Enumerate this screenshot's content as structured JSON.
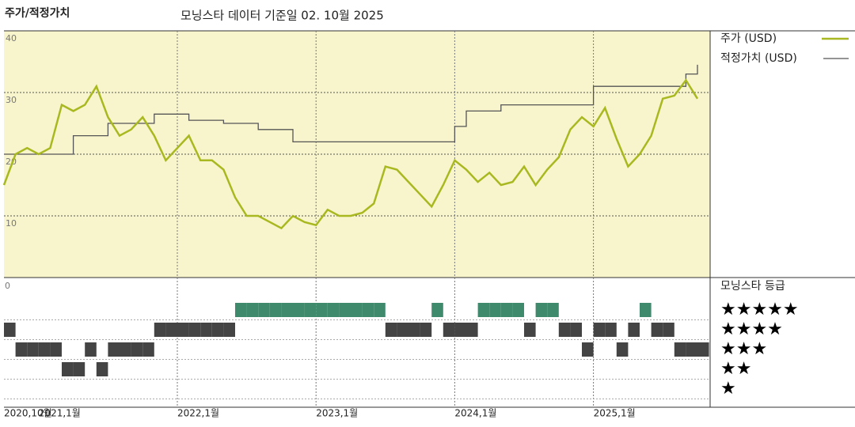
{
  "chart_data": {
    "type": "line",
    "title": "주가/적정가치",
    "subtitle": "모닝스타 데이터 기준일 02. 10월 2025",
    "x": [
      "2020-10",
      "2020-11",
      "2020-12",
      "2021-01",
      "2021-02",
      "2021-03",
      "2021-04",
      "2021-05",
      "2021-06",
      "2021-07",
      "2021-08",
      "2021-09",
      "2021-10",
      "2021-11",
      "2021-12",
      "2022-01",
      "2022-02",
      "2022-03",
      "2022-04",
      "2022-05",
      "2022-06",
      "2022-07",
      "2022-08",
      "2022-09",
      "2022-10",
      "2022-11",
      "2022-12",
      "2023-01",
      "2023-02",
      "2023-03",
      "2023-04",
      "2023-05",
      "2023-06",
      "2023-07",
      "2023-08",
      "2023-09",
      "2023-10",
      "2023-11",
      "2023-12",
      "2024-01",
      "2024-02",
      "2024-03",
      "2024-04",
      "2024-05",
      "2024-06",
      "2024-07",
      "2024-08",
      "2024-09",
      "2024-10",
      "2024-11",
      "2024-12",
      "2025-01",
      "2025-02",
      "2025-03",
      "2025-04",
      "2025-05",
      "2025-06",
      "2025-07",
      "2025-08",
      "2025-09",
      "2025-10"
    ],
    "series": [
      {
        "name": "주가 (USD)",
        "color": "#a8b820",
        "step": false,
        "values": [
          15,
          20,
          21,
          20,
          21,
          28,
          27,
          28,
          31,
          26,
          23,
          24,
          26,
          23,
          19,
          21,
          23,
          19,
          19,
          17.5,
          13,
          10,
          10,
          9,
          8,
          10,
          9,
          8.5,
          11,
          10,
          10,
          10.5,
          12,
          18,
          17.5,
          15.5,
          13.5,
          11.5,
          15,
          19,
          17.5,
          15.5,
          17,
          15,
          15.5,
          18,
          15,
          17.5,
          19.5,
          24,
          26,
          24.5,
          27.5,
          22.5,
          18,
          20,
          23,
          29,
          29.5,
          32,
          29
        ]
      },
      {
        "name": "적정가치 (USD)",
        "color": "#555555",
        "step": true,
        "values": [
          20,
          20,
          20,
          20,
          20,
          20,
          23,
          23,
          23,
          25,
          25,
          25,
          25,
          26.5,
          26.5,
          26.5,
          25.5,
          25.5,
          25.5,
          25,
          25,
          25,
          24,
          24,
          24,
          22,
          22,
          22,
          22,
          22,
          22,
          22,
          22,
          22,
          22,
          22,
          22,
          22,
          22,
          24.5,
          27,
          27,
          27,
          28,
          28,
          28,
          28,
          28,
          28,
          28,
          28,
          31,
          31,
          31,
          31,
          31,
          31,
          31,
          31,
          33,
          34.5
        ]
      }
    ],
    "ylim": [
      0,
      40
    ],
    "yticks": [
      10,
      20,
      30,
      40
    ],
    "grid": true,
    "xticks": [
      {
        "value": "2020-10",
        "label": "2020,10월"
      },
      {
        "value": "2021-01",
        "label": "2021,1월"
      },
      {
        "value": "2022-01",
        "label": "2022,1월"
      },
      {
        "value": "2023-01",
        "label": "2023,1월"
      },
      {
        "value": "2024-01",
        "label": "2024,1월"
      },
      {
        "value": "2025-01",
        "label": "2025,1월"
      }
    ],
    "ratings": {
      "title": "모닝스타 등급",
      "axis_label": "0",
      "levels": [
        "★★★★★",
        "★★★★",
        "★★★",
        "★★",
        "★"
      ],
      "top_color": "#3f8a6c",
      "color": "#444444",
      "values": [
        4,
        3,
        3,
        3,
        3,
        2,
        2,
        3,
        2,
        3,
        3,
        3,
        3,
        4,
        4,
        4,
        4,
        4,
        4,
        4,
        5,
        5,
        5,
        5,
        5,
        5,
        5,
        5,
        5,
        5,
        5,
        5,
        5,
        4,
        4,
        4,
        4,
        5,
        4,
        4,
        4,
        5,
        5,
        5,
        5,
        4,
        5,
        5,
        4,
        4,
        3,
        4,
        4,
        3,
        4,
        5,
        4,
        4,
        3,
        3,
        3
      ]
    }
  }
}
